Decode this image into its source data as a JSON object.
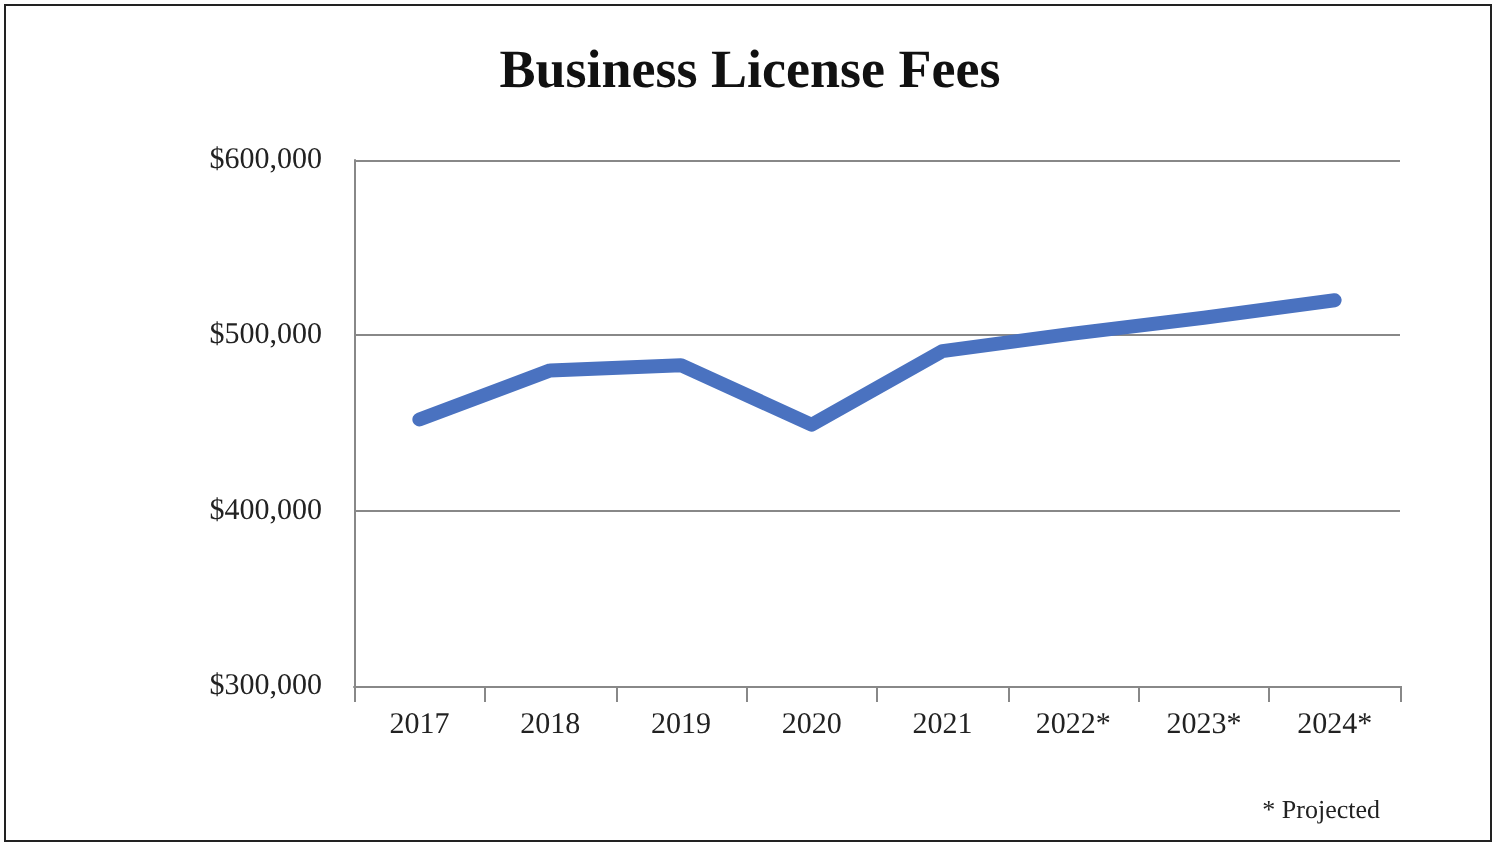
{
  "chart_data": {
    "type": "line",
    "title": "Business License Fees",
    "categories": [
      "2017",
      "2018",
      "2019",
      "2020",
      "2021",
      "2022*",
      "2023*",
      "2024*"
    ],
    "series": [
      {
        "color": "#4a72c0",
        "values": [
          452000,
          480000,
          483000,
          449000,
          491000,
          501000,
          510000,
          520000
        ]
      }
    ],
    "ylim": [
      300000,
      600000
    ],
    "yticks": [
      {
        "value": 300000,
        "label": "$300,000"
      },
      {
        "value": 400000,
        "label": "$400,000"
      },
      {
        "value": 500000,
        "label": "$500,000"
      },
      {
        "value": 600000,
        "label": "$600,000"
      }
    ],
    "grid": "y",
    "line_style": "solid",
    "annotations": [
      "* Projected"
    ]
  }
}
